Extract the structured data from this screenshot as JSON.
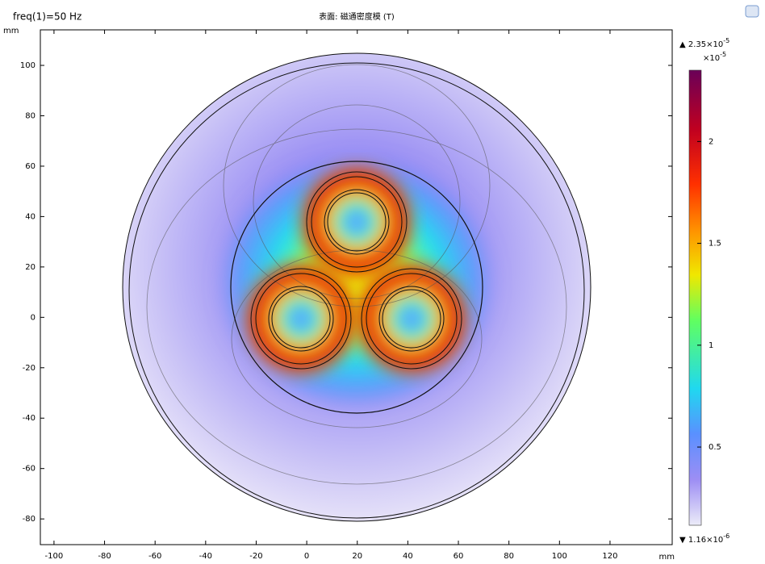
{
  "chart_data": {
    "type": "field",
    "subtitle": "freq(1)=50 Hz",
    "title": "表面: 磁通密度模 (T)",
    "x_label": "mm",
    "y_label": "mm",
    "xlim": [
      -105.4,
      144.6
    ],
    "xticks": [
      -100,
      -80,
      -60,
      -40,
      -20,
      0,
      20,
      40,
      60,
      80,
      100,
      120
    ],
    "ylim": [
      -90.2,
      114.1
    ],
    "yticks": [
      -80,
      -60,
      -40,
      -20,
      0,
      20,
      40,
      60,
      80,
      100
    ],
    "colorbar": {
      "clim": [
        0.116,
        2.35
      ],
      "ticks": [
        0.5,
        1,
        1.5,
        2
      ],
      "multiplier": "×10",
      "multiplier_exponent": "-5",
      "max_label": "2.35×10",
      "max_exponent": "-5",
      "min_label": "1.16×10",
      "min_exponent": "-6"
    }
  }
}
